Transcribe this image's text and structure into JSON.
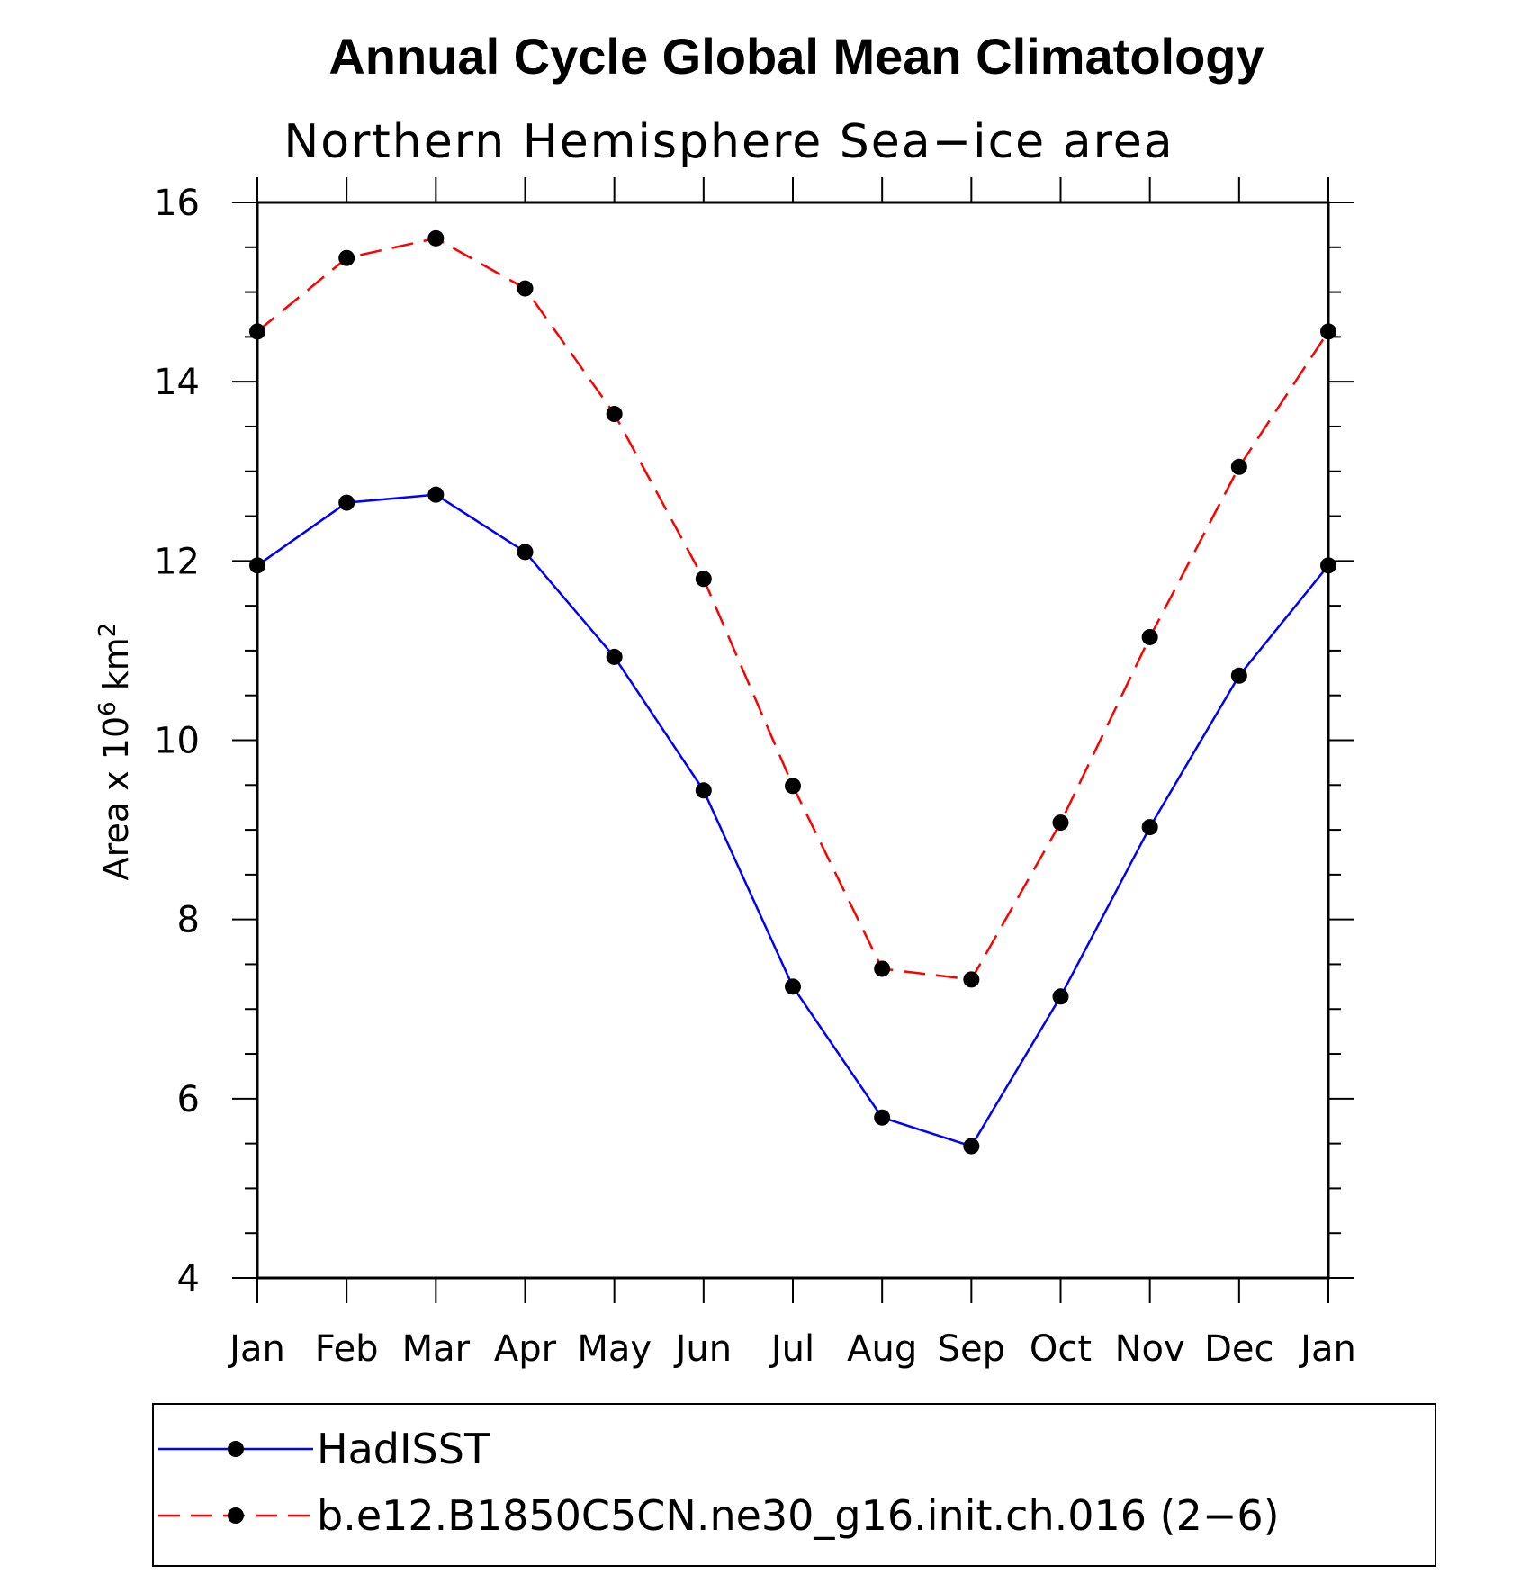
{
  "chart_data": {
    "type": "line",
    "title": "Annual Cycle Global Mean Climatology",
    "subtitle": "Northern Hemisphere Sea−ice area",
    "ylabel": "Area x 10",
    "ylabel_exp": "6",
    "ylabel_unit": " km",
    "ylabel_unit_exp": "2",
    "ylim": [
      4,
      16
    ],
    "yticks": [
      "4",
      "6",
      "8",
      "10",
      "12",
      "14",
      "16"
    ],
    "categories": [
      "Jan",
      "Feb",
      "Mar",
      "Apr",
      "May",
      "Jun",
      "Jul",
      "Aug",
      "Sep",
      "Oct",
      "Nov",
      "Dec",
      "Jan"
    ],
    "series": [
      {
        "name": "HadISST",
        "color": "#0000ff",
        "dash": "solid",
        "values": [
          11.95,
          12.65,
          12.74,
          12.1,
          10.93,
          9.44,
          7.25,
          5.79,
          5.47,
          7.14,
          9.03,
          10.72,
          11.95
        ]
      },
      {
        "name": "b.e12.B1850C5CN.ne30_g16.init.ch.016 (2−6)",
        "color": "#ff0000",
        "dash": "dashed",
        "values": [
          14.56,
          15.38,
          15.6,
          15.04,
          13.64,
          11.8,
          9.49,
          7.45,
          7.33,
          9.08,
          11.15,
          13.05,
          14.56
        ]
      }
    ],
    "legend_position": "bottom"
  }
}
